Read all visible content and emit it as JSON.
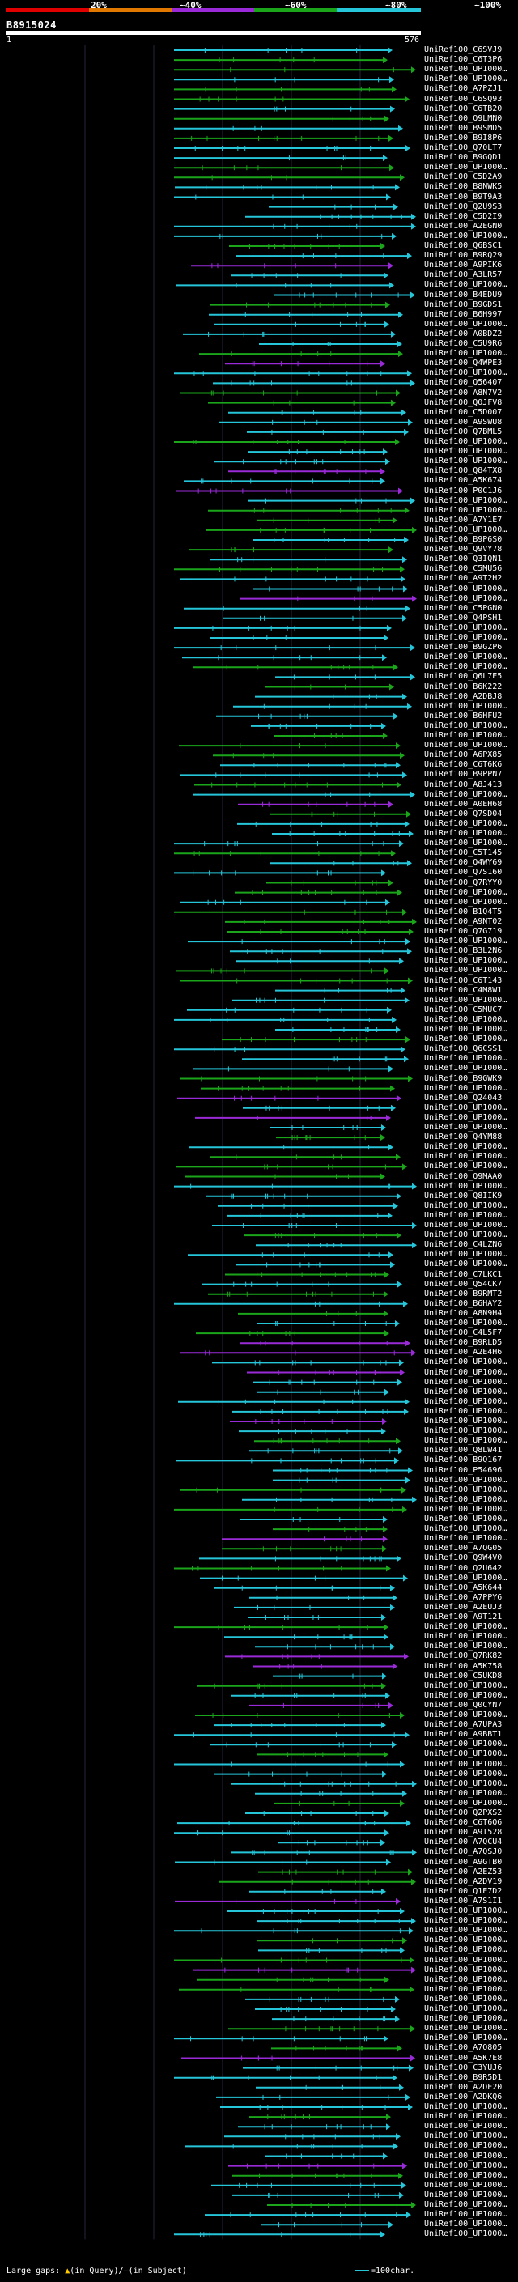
{
  "legend": {
    "labels": [
      "20%",
      "~40%",
      "~60%",
      "~80%",
      "~100%"
    ],
    "colors": [
      "#e00000",
      "#e07800",
      "#9a2ad8",
      "#1aa51a",
      "#25c6da"
    ]
  },
  "query": {
    "id": "B8915024",
    "start": "1",
    "end": "576"
  },
  "hits": [
    "UniRef100_C6SVJ9",
    "UniRef100_C6T3P6",
    "UniRef100_UP1000…",
    "UniRef100_UP1000…",
    "UniRef100_A7PZJ1",
    "UniRef100_C6SQ93",
    "UniRef100_C6TB20",
    "UniRef100_Q9LMN0",
    "UniRef100_B9SMD5",
    "UniRef100_B9I8P6",
    "UniRef100_Q70LT7",
    "UniRef100_B9GQD1",
    "UniRef100_UP1000…",
    "UniRef100_C5D2A9",
    "UniRef100_B8NWK5",
    "UniRef100_B9T9A3",
    "UniRef100_Q2U9S3",
    "UniRef100_C5D2I9",
    "UniRef100_A2EGN0",
    "UniRef100_UP1000…",
    "UniRef100_Q6BSC1",
    "UniRef100_B9RQ29",
    "UniRef100_A9PIK6",
    "UniRef100_A3LR57",
    "UniRef100_UP1000…",
    "UniRef100_B4EDU9",
    "UniRef100_B9GDS1",
    "UniRef100_B6H997",
    "UniRef100_UP1000…",
    "UniRef100_A0BDZ2",
    "UniRef100_C5U9R6",
    "UniRef100_UP1000…",
    "UniRef100_Q4WPE3",
    "UniRef100_UP1000…",
    "UniRef100_Q56407",
    "UniRef100_A8N7V2",
    "UniRef100_Q0JFV8",
    "UniRef100_C5D007",
    "UniRef100_A9SWU8",
    "UniRef100_Q7BML5",
    "UniRef100_UP1000…",
    "UniRef100_UP1000…",
    "UniRef100_UP1000…",
    "UniRef100_Q84TX8",
    "UniRef100_A5K674",
    "UniRef100_P0C1J6",
    "UniRef100_UP1000…",
    "UniRef100_UP1000…",
    "UniRef100_A7Y1E7",
    "UniRef100_UP1000…",
    "UniRef100_B9P6S0",
    "UniRef100_Q9VY78",
    "UniRef100_Q3IQN1",
    "UniRef100_C5MU56",
    "UniRef100_A9T2H2",
    "UniRef100_UP1000…",
    "UniRef100_UP1000…",
    "UniRef100_C5PGN0",
    "UniRef100_Q4PSH1",
    "UniRef100_UP1000…",
    "UniRef100_UP1000…",
    "UniRef100_B9GZP6",
    "UniRef100_UP1000…",
    "UniRef100_UP1000…",
    "UniRef100_Q6L7E5",
    "UniRef100_B6K222",
    "UniRef100_A2DBJ8",
    "UniRef100_UP1000…",
    "UniRef100_B6HFU2",
    "UniRef100_UP1000…",
    "UniRef100_UP1000…",
    "UniRef100_UP1000…",
    "UniRef100_A6PX85",
    "UniRef100_C6T6K6",
    "UniRef100_B9PPN7",
    "UniRef100_A8J413",
    "UniRef100_UP1000…",
    "UniRef100_A0EH68",
    "UniRef100_Q7SD04",
    "UniRef100_UP1000…",
    "UniRef100_UP1000…",
    "UniRef100_UP1000…",
    "UniRef100_C5T145",
    "UniRef100_Q4WY69",
    "UniRef100_Q7S160",
    "UniRef100_Q7RYY0",
    "UniRef100_UP1000…",
    "UniRef100_UP1000…",
    "UniRef100_B1Q4T5",
    "UniRef100_A9NT02",
    "UniRef100_Q7G719",
    "UniRef100_UP1000…",
    "UniRef100_B3L2N6",
    "UniRef100_UP1000…",
    "UniRef100_UP1000…",
    "UniRef100_C6T143",
    "UniRef100_C4M8W1",
    "UniRef100_UP1000…",
    "UniRef100_C5MUC7",
    "UniRef100_UP1000…",
    "UniRef100_UP1000…",
    "UniRef100_UP1000…",
    "UniRef100_Q6CSS1",
    "UniRef100_UP1000…",
    "UniRef100_UP1000…",
    "UniRef100_B9GWK9",
    "UniRef100_UP1000…",
    "UniRef100_Q24043",
    "UniRef100_UP1000…",
    "UniRef100_UP1000…",
    "UniRef100_UP1000…",
    "UniRef100_Q4YM88",
    "UniRef100_UP1000…",
    "UniRef100_UP1000…",
    "UniRef100_UP1000…",
    "UniRef100_Q9MAA0",
    "UniRef100_UP1000…",
    "UniRef100_Q8IIK9",
    "UniRef100_UP1000…",
    "UniRef100_UP1000…",
    "UniRef100_UP1000…",
    "UniRef100_UP1000…",
    "UniRef100_C4LZN6",
    "UniRef100_UP1000…",
    "UniRef100_UP1000…",
    "UniRef100_C7LKC1",
    "UniRef100_Q54CK7",
    "UniRef100_B9RMT2",
    "UniRef100_B6HAY2",
    "UniRef100_A8N9H4",
    "UniRef100_UP1000…",
    "UniRef100_C4L5F7",
    "UniRef100_B9RLD5",
    "UniRef100_A2E4H6",
    "UniRef100_UP1000…",
    "UniRef100_UP1000…",
    "UniRef100_UP1000…",
    "UniRef100_UP1000…",
    "UniRef100_UP1000…",
    "UniRef100_UP1000…",
    "UniRef100_UP1000…",
    "UniRef100_UP1000…",
    "UniRef100_UP1000…",
    "UniRef100_Q8LW41",
    "UniRef100_B9Q167",
    "UniRef100_P54696",
    "UniRef100_UP1000…",
    "UniRef100_UP1000…",
    "UniRef100_UP1000…",
    "UniRef100_UP1000…",
    "UniRef100_UP1000…",
    "UniRef100_UP1000…",
    "UniRef100_UP1000…",
    "UniRef100_A7QG05",
    "UniRef100_Q9W4V0",
    "UniRef100_Q2U642",
    "UniRef100_UP1000…",
    "UniRef100_A5K644",
    "UniRef100_A7PPY6",
    "UniRef100_A2EUJ3",
    "UniRef100_A9T121",
    "UniRef100_UP1000…",
    "UniRef100_UP1000…",
    "UniRef100_UP1000…",
    "UniRef100_Q7RK82",
    "UniRef100_A5K758",
    "UniRef100_C5UKD8",
    "UniRef100_UP1000…",
    "UniRef100_UP1000…",
    "UniRef100_Q0CYN7",
    "UniRef100_UP1000…",
    "UniRef100_A7UPA3",
    "UniRef100_A9BBT1",
    "UniRef100_UP1000…",
    "UniRef100_UP1000…",
    "UniRef100_UP1000…",
    "UniRef100_UP1000…",
    "UniRef100_UP1000…",
    "UniRef100_UP1000…",
    "UniRef100_UP1000…",
    "UniRef100_Q2PXS2",
    "UniRef100_C6T6Q6",
    "UniRef100_A9T528",
    "UniRef100_A7QCU4",
    "UniRef100_A7QSJ0",
    "UniRef100_A9GTB0",
    "UniRef100_A2EZ53",
    "UniRef100_A2DV19",
    "UniRef100_Q1E7D2",
    "UniRef100_A7S1I1",
    "UniRef100_UP1000…",
    "UniRef100_UP1000…",
    "UniRef100_UP1000…",
    "UniRef100_UP1000…",
    "UniRef100_UP1000…",
    "UniRef100_UP1000…",
    "UniRef100_UP1000…",
    "UniRef100_UP1000…",
    "UniRef100_UP1000…",
    "UniRef100_UP1000…",
    "UniRef100_UP1000…",
    "UniRef100_UP1000…",
    "UniRef100_UP1000…",
    "UniRef100_UP1000…",
    "UniRef100_A7Q805",
    "UniRef100_A5K7E8",
    "UniRef100_C3YUJ6",
    "UniRef100_B9R5D1",
    "UniRef100_A2DE20",
    "UniRef100_A2DKQ6",
    "UniRef100_UP1000…",
    "UniRef100_UP1000…",
    "UniRef100_UP1000…",
    "UniRef100_UP1000…",
    "UniRef100_UP1000…",
    "UniRef100_UP1000…",
    "UniRef100_UP1000…",
    "UniRef100_UP1000…",
    "UniRef100_UP1000…",
    "UniRef100_UP1000…",
    "UniRef100_UP1000…",
    "UniRef100_UP1000…",
    "UniRef100_UP1000…",
    "UniRef100_UP1000…"
  ],
  "footer": {
    "gaps_label": "Large gaps:",
    "query_marker": "▲",
    "query_text": "(in Query)/",
    "subject_marker": "—",
    "subject_text": "(in Subject)",
    "scale_text": "=100char."
  }
}
